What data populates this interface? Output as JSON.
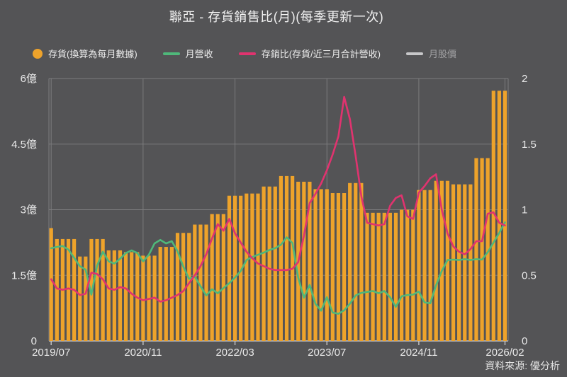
{
  "title": "聯亞 - 存貨銷售比(月)(每季更新一次)",
  "source": "資料來源: 優分析",
  "colors": {
    "background": "#545456",
    "bar_orange": "#eea32b",
    "revenue_green": "#4fb87a",
    "ratio_pink": "#e0336f",
    "price_gray": "#c7c7c9",
    "gridline": "#7c7c7e",
    "axis_line": "#c7c7c9",
    "text": "#e9e9e9",
    "disabled_text": "#a2a2a4"
  },
  "legend": [
    {
      "label": "存貨(換算為每月數據)",
      "swatch": "circle",
      "color": "#eea32b",
      "disabled": false
    },
    {
      "label": "月營收",
      "swatch": "line",
      "color": "#4fb87a",
      "disabled": false
    },
    {
      "label": "存銷比(存貨/近三月合計營收)",
      "swatch": "line",
      "color": "#e0336f",
      "disabled": false
    },
    {
      "label": "月股價",
      "swatch": "line",
      "color": "#c7c7c9",
      "disabled": true
    }
  ],
  "chart_data": {
    "type": "bar",
    "frequency": "monthly",
    "start_month": "2019/07",
    "end_month": "2026/02",
    "x_axis": {
      "ticks": [
        {
          "label": "2019/07",
          "month_index": 0
        },
        {
          "label": "2020/11",
          "month_index": 16
        },
        {
          "label": "2022/03",
          "month_index": 32
        },
        {
          "label": "2023/07",
          "month_index": 48
        },
        {
          "label": "2024/11",
          "month_index": 64
        },
        {
          "label": "2026/02",
          "month_index": 79
        }
      ]
    },
    "left_axis": {
      "max": 6,
      "unit": "億",
      "ticks": [
        {
          "label": "0",
          "value": 0
        },
        {
          "label": "1.5億",
          "value": 1.5
        },
        {
          "label": "3億",
          "value": 3
        },
        {
          "label": "4.5億",
          "value": 4.5
        },
        {
          "label": "6億",
          "value": 6
        }
      ]
    },
    "right_axis": {
      "max": 2,
      "ticks": [
        {
          "label": "0",
          "value": 0
        },
        {
          "label": "0.5",
          "value": 0.5
        },
        {
          "label": "1",
          "value": 1
        },
        {
          "label": "1.5",
          "value": 1.5
        },
        {
          "label": "2",
          "value": 2
        }
      ]
    },
    "series": [
      {
        "name": "存貨(換算為每月數據)",
        "type": "bar",
        "axis": "left",
        "unit": "億",
        "color": "#eea32b",
        "values": [
          2.58,
          2.33,
          2.33,
          2.33,
          2.33,
          1.93,
          1.93,
          2.33,
          2.33,
          2.33,
          2.07,
          2.07,
          2.07,
          2.03,
          2.03,
          2.03,
          1.95,
          1.95,
          1.95,
          2.15,
          2.15,
          2.15,
          2.47,
          2.47,
          2.47,
          2.66,
          2.66,
          2.66,
          2.9,
          2.9,
          2.9,
          3.32,
          3.32,
          3.32,
          3.37,
          3.37,
          3.37,
          3.53,
          3.53,
          3.53,
          3.77,
          3.77,
          3.77,
          3.64,
          3.64,
          3.64,
          3.47,
          3.47,
          3.47,
          3.38,
          3.38,
          3.38,
          3.61,
          3.61,
          3.61,
          2.93,
          2.93,
          2.93,
          2.93,
          2.93,
          2.93,
          3.0,
          3.0,
          3.0,
          3.45,
          3.45,
          3.45,
          3.66,
          3.66,
          3.66,
          3.58,
          3.58,
          3.58,
          3.58,
          4.18,
          4.18,
          4.18,
          5.72,
          5.72,
          5.72
        ]
      },
      {
        "name": "月營收",
        "type": "line",
        "axis": "left",
        "unit": "億",
        "color": "#4fb87a",
        "values": [
          2.12,
          2.15,
          2.17,
          2.09,
          1.9,
          1.71,
          1.63,
          1.06,
          1.72,
          2.04,
          1.82,
          1.77,
          1.88,
          2.01,
          2.07,
          2.01,
          1.82,
          1.97,
          2.23,
          2.31,
          2.23,
          2.28,
          2.05,
          1.7,
          1.42,
          1.47,
          1.25,
          1.04,
          1.18,
          1.09,
          1.21,
          1.32,
          1.45,
          1.6,
          1.85,
          1.92,
          1.97,
          2.02,
          2.08,
          2.12,
          2.2,
          2.37,
          2.24,
          1.45,
          0.99,
          1.28,
          0.85,
          0.69,
          1.0,
          0.65,
          0.62,
          0.7,
          0.85,
          1.04,
          1.1,
          1.12,
          1.14,
          1.09,
          1.14,
          1.0,
          0.78,
          1.02,
          1.05,
          1.06,
          1.13,
          0.88,
          0.86,
          1.27,
          1.6,
          1.85,
          1.86,
          1.85,
          1.87,
          1.85,
          1.87,
          1.86,
          2.03,
          2.25,
          2.47,
          2.71
        ]
      },
      {
        "name": "存銷比(存貨/近三月合計營收)",
        "type": "line",
        "axis": "right",
        "color": "#e0336f",
        "values": [
          0.47,
          0.4,
          0.39,
          0.4,
          0.39,
          0.35,
          0.36,
          0.52,
          0.51,
          0.47,
          0.4,
          0.39,
          0.41,
          0.4,
          0.36,
          0.33,
          0.31,
          0.32,
          0.33,
          0.3,
          0.31,
          0.33,
          0.35,
          0.38,
          0.44,
          0.5,
          0.57,
          0.66,
          0.78,
          0.89,
          0.84,
          0.93,
          0.82,
          0.75,
          0.68,
          0.63,
          0.59,
          0.57,
          0.55,
          0.54,
          0.54,
          0.54,
          0.55,
          0.6,
          0.8,
          1.05,
          1.12,
          1.2,
          1.3,
          1.42,
          1.56,
          1.86,
          1.69,
          1.41,
          1.1,
          0.9,
          0.89,
          0.88,
          0.89,
          1.03,
          1.09,
          1.11,
          0.95,
          0.93,
          1.13,
          1.18,
          1.24,
          1.27,
          1.0,
          0.82,
          0.72,
          0.68,
          0.66,
          0.7,
          0.76,
          0.76,
          0.97,
          0.98,
          0.9,
          0.88
        ]
      },
      {
        "name": "月股價",
        "type": "line",
        "axis": "right",
        "color": "#c7c7c9",
        "hidden": true,
        "values": []
      }
    ]
  }
}
